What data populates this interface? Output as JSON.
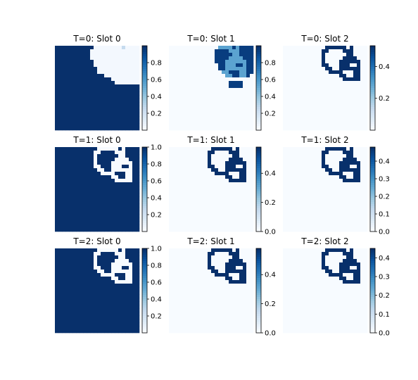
{
  "colors": {
    "cmap": "Blues",
    "cmap_low": "#f7fbff",
    "cmap_high": "#08306b",
    "border": "#000000"
  },
  "chart_data": [
    {
      "type": "heatmap",
      "title": "T=0: Slot 0",
      "pattern": "slot0_t0",
      "colorbar_ticks": [
        "0.2",
        "0.4",
        "0.6",
        "0.8"
      ],
      "colorbar_values": [
        0.2,
        0.4,
        0.6,
        0.8
      ],
      "vmin": 0.0,
      "vmax": 1.0
    },
    {
      "type": "heatmap",
      "title": "T=0: Slot 1",
      "pattern": "slot1_t0",
      "colorbar_ticks": [
        "0.2",
        "0.4",
        "0.6",
        "0.8"
      ],
      "colorbar_values": [
        0.2,
        0.4,
        0.6,
        0.8
      ],
      "vmin": 0.0,
      "vmax": 1.0
    },
    {
      "type": "heatmap",
      "title": "T=0: Slot 2",
      "pattern": "ring_thin",
      "colorbar_ticks": [
        "0.2",
        "0.4"
      ],
      "colorbar_values": [
        0.2,
        0.4
      ],
      "vmin": 0.0,
      "vmax": 0.53
    },
    {
      "type": "heatmap",
      "title": "T=1: Slot 0",
      "pattern": "inverse_ring",
      "colorbar_ticks": [
        "0.2",
        "0.4",
        "0.6",
        "0.8",
        "1.0"
      ],
      "colorbar_values": [
        0.2,
        0.4,
        0.6,
        0.8,
        1.0
      ],
      "vmin": 0.0,
      "vmax": 1.0
    },
    {
      "type": "heatmap",
      "title": "T=1: Slot 1",
      "pattern": "ring",
      "colorbar_ticks": [
        "0.0",
        "0.2",
        "0.4"
      ],
      "colorbar_values": [
        0.0,
        0.2,
        0.4
      ],
      "vmin": 0.0,
      "vmax": 0.58
    },
    {
      "type": "heatmap",
      "title": "T=1: Slot 2",
      "pattern": "ring",
      "colorbar_ticks": [
        "0.0",
        "0.1",
        "0.2",
        "0.3",
        "0.4"
      ],
      "colorbar_values": [
        0.0,
        0.1,
        0.2,
        0.3,
        0.4
      ],
      "vmin": 0.0,
      "vmax": 0.48
    },
    {
      "type": "heatmap",
      "title": "T=2: Slot 0",
      "pattern": "inverse_ring",
      "colorbar_ticks": [
        "0.2",
        "0.4",
        "0.6",
        "0.8",
        "1.0"
      ],
      "colorbar_values": [
        0.2,
        0.4,
        0.6,
        0.8,
        1.0
      ],
      "vmin": 0.0,
      "vmax": 1.0
    },
    {
      "type": "heatmap",
      "title": "T=2: Slot 1",
      "pattern": "ring",
      "colorbar_ticks": [
        "0.0",
        "0.2",
        "0.4"
      ],
      "colorbar_values": [
        0.0,
        0.2,
        0.4
      ],
      "vmin": 0.0,
      "vmax": 0.58
    },
    {
      "type": "heatmap",
      "title": "T=2: Slot 2",
      "pattern": "ring",
      "colorbar_ticks": [
        "0.0",
        "0.1",
        "0.2",
        "0.3",
        "0.4"
      ],
      "colorbar_values": [
        0.0,
        0.1,
        0.2,
        0.3,
        0.4
      ],
      "vmin": 0.0,
      "vmax": 0.45
    }
  ]
}
